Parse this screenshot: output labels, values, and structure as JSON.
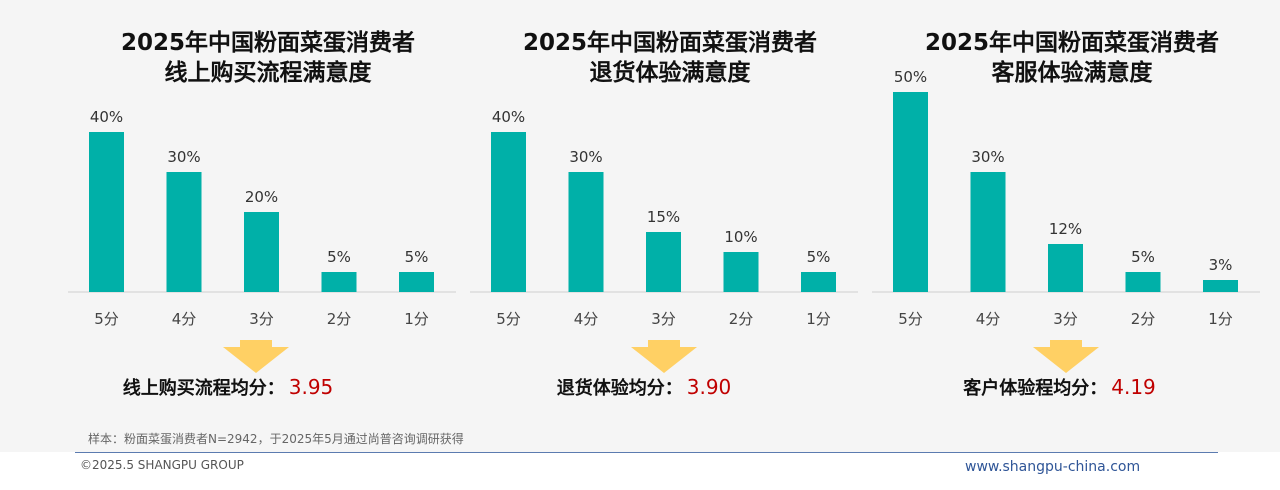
{
  "chart_data": [
    {
      "type": "bar",
      "title_lines": [
        "2025年中国粉面菜蛋消费者",
        "线上购买流程满意度"
      ],
      "categories": [
        "5分",
        "4分",
        "3分",
        "2分",
        "1分"
      ],
      "values": [
        40,
        30,
        20,
        5,
        5
      ],
      "value_labels": [
        "40%",
        "30%",
        "20%",
        "5%",
        "5%"
      ],
      "unit": "%",
      "average_label": "线上购买流程均分：",
      "average_value": "3.95"
    },
    {
      "type": "bar",
      "title_lines": [
        "2025年中国粉面菜蛋消费者",
        "退货体验满意度"
      ],
      "categories": [
        "5分",
        "4分",
        "3分",
        "2分",
        "1分"
      ],
      "values": [
        40,
        30,
        15,
        10,
        5
      ],
      "value_labels": [
        "40%",
        "30%",
        "15%",
        "10%",
        "5%"
      ],
      "unit": "%",
      "average_label": "退货体验均分：",
      "average_value": "3.90"
    },
    {
      "type": "bar",
      "title_lines": [
        "2025年中国粉面菜蛋消费者",
        "客服体验满意度"
      ],
      "categories": [
        "5分",
        "4分",
        "3分",
        "2分",
        "1分"
      ],
      "values": [
        50,
        30,
        12,
        5,
        3
      ],
      "value_labels": [
        "50%",
        "30%",
        "12%",
        "5%",
        "3%"
      ],
      "unit": "%",
      "average_label": "客户体验程均分：",
      "average_value": "4.19"
    }
  ],
  "colors": {
    "bar": "#00b0a8",
    "arrow": "#ffd064",
    "average_value": "#c00000",
    "footer_link": "#2f5597"
  },
  "footer": {
    "sample_note": "样本：粉面菜蛋消费者N=2942，于2025年5月通过尚普咨询调研获得",
    "copyright": "©2025.5 SHANGPU GROUP",
    "website": "www.shangpu-china.com"
  }
}
